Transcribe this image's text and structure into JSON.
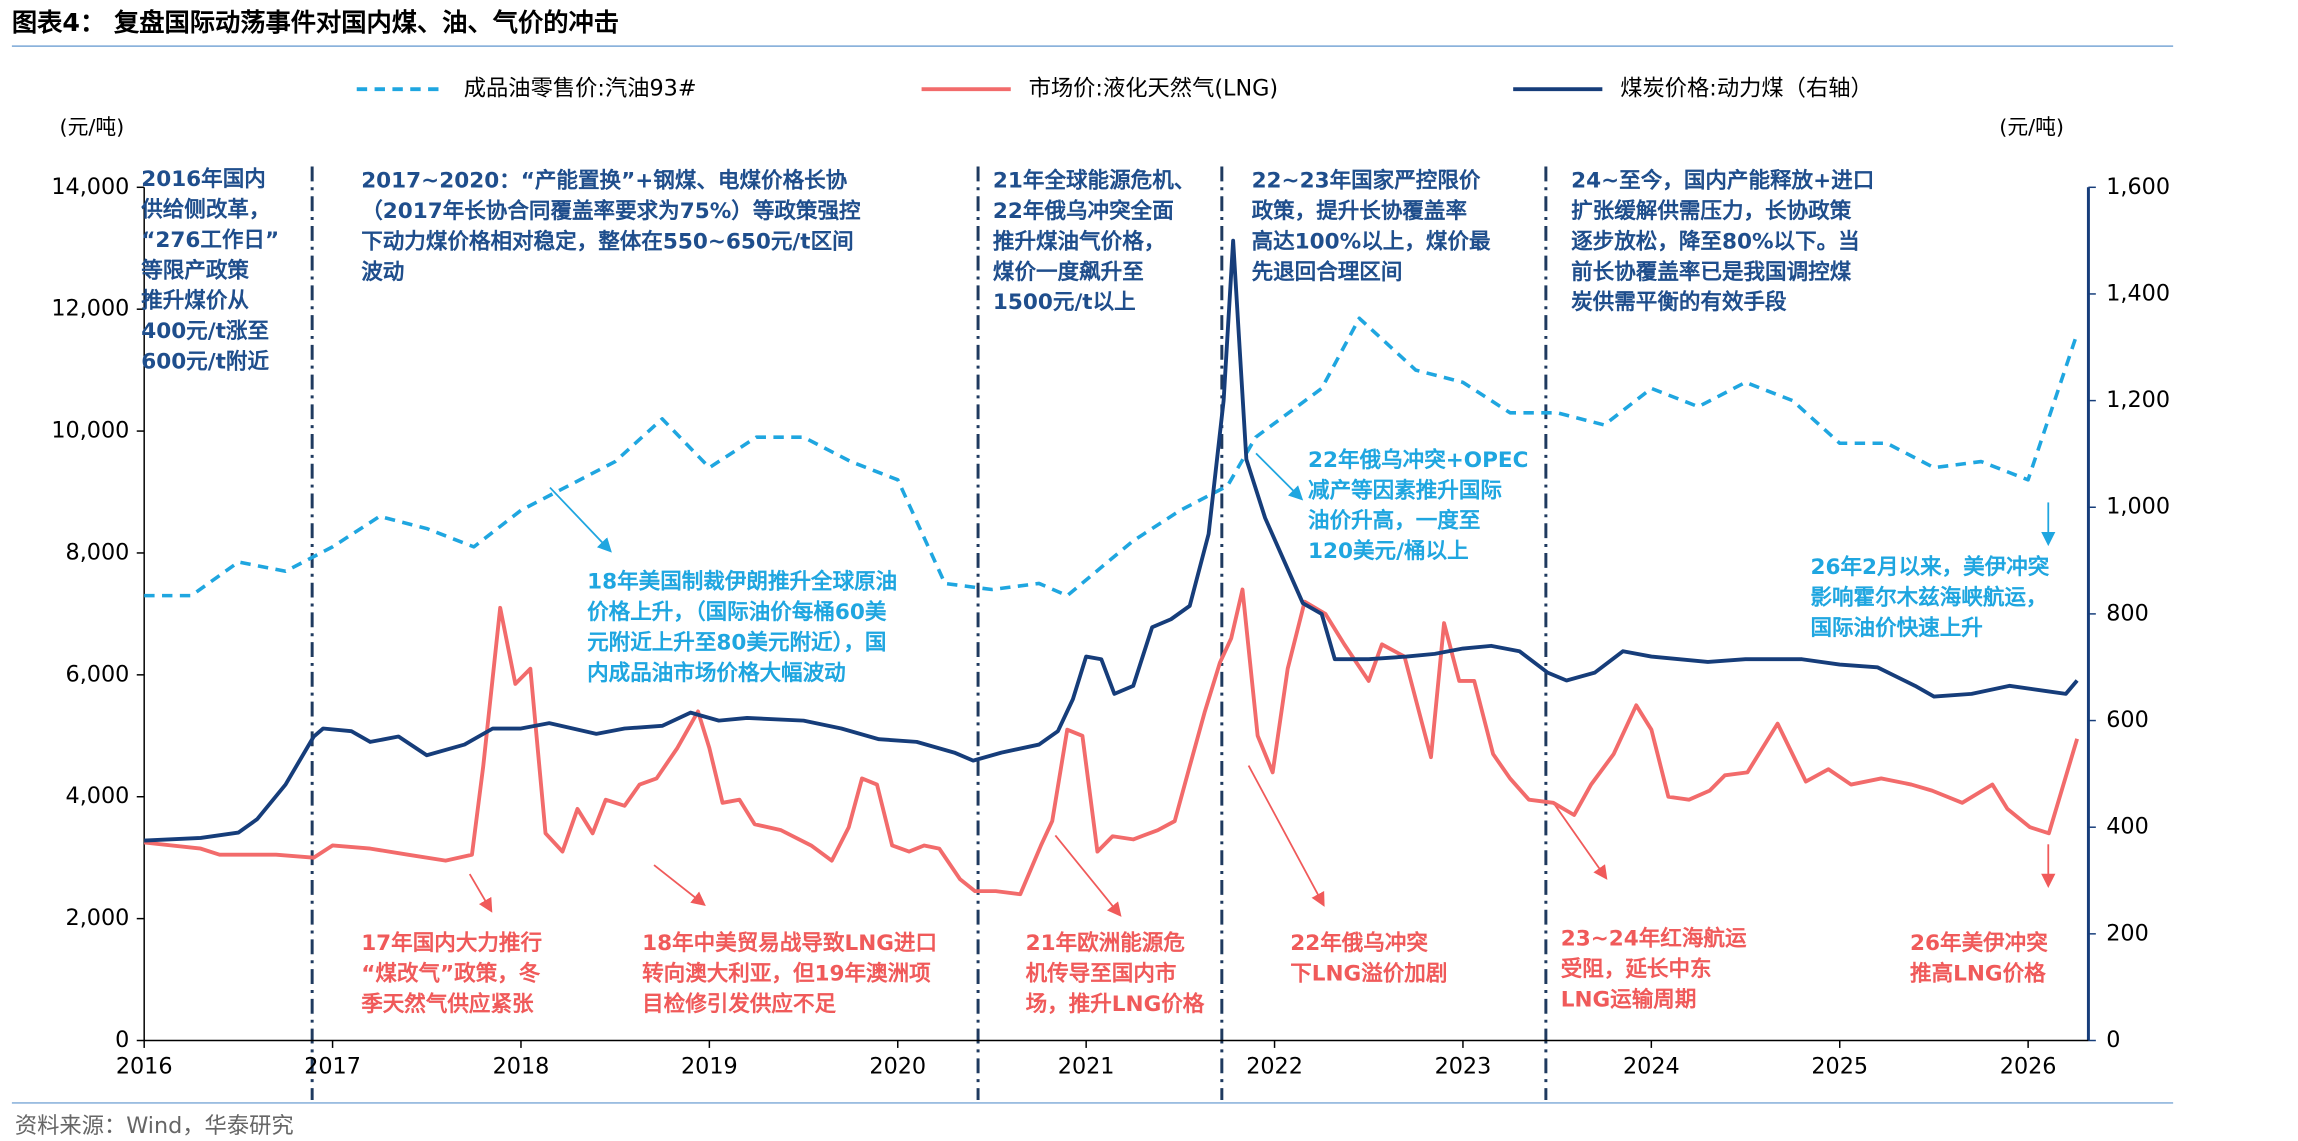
{
  "chart_data": {
    "type": "line",
    "title": "图表4：  复盘国际动荡事件对国内煤、油、气价的冲击",
    "source": "资料来源：Wind，华泰研究",
    "ylabel": "(元/吨)",
    "y2label": "(元/吨)",
    "xlim": [
      2016,
      2026.32
    ],
    "xticks": [
      2016,
      2017,
      2018,
      2019,
      2020,
      2021,
      2022,
      2023,
      2024,
      2025,
      2026
    ],
    "ylim": [
      0,
      14000
    ],
    "yticks": [
      0,
      {
        "value": 2000,
        "label": "2,000"
      },
      {
        "value": 4000,
        "label": "4,000"
      },
      {
        "value": 6000,
        "label": "6,000"
      },
      {
        "value": 8000,
        "label": "8,000"
      },
      {
        "value": 10000,
        "label": "10,000"
      },
      {
        "value": 12000,
        "label": "12,000"
      },
      {
        "value": 14000,
        "label": "14,000"
      }
    ],
    "y2lim": [
      0,
      1600
    ],
    "y2ticks": [
      0,
      200,
      400,
      600,
      800,
      {
        "value": 1000,
        "label": "1,000"
      },
      {
        "value": 1200,
        "label": "1,200"
      },
      {
        "value": 1400,
        "label": "1,400"
      },
      {
        "value": 1600,
        "label": "1,600"
      }
    ],
    "series": [
      {
        "name": "成品油零售价:汽油93#",
        "color": "#1fa6e0",
        "dash": true,
        "x": [
          2016,
          2016.25,
          2016.5,
          2016.75,
          2017,
          2017.25,
          2017.5,
          2017.75,
          2018,
          2018.25,
          2018.5,
          2018.75,
          2019,
          2019.25,
          2019.5,
          2019.75,
          2020,
          2020.25,
          2020.5,
          2020.75,
          2020.9,
          2021.25,
          2021.5,
          2021.75,
          2021.9,
          2022.25,
          2022.45,
          2022.75,
          2023,
          2023.25,
          2023.5,
          2023.75,
          2024,
          2024.25,
          2024.5,
          2024.75,
          2025,
          2025.25,
          2025.5,
          2025.75,
          2026,
          2026.26
        ],
        "values": [
          7300,
          7300,
          7850,
          7700,
          8100,
          8600,
          8400,
          8100,
          8700,
          9100,
          9500,
          10200,
          9400,
          9900,
          9900,
          9500,
          9200,
          7500,
          7400,
          7500,
          7300,
          8200,
          8700,
          9100,
          9900,
          10700,
          11850,
          11000,
          10800,
          10300,
          10300,
          10100,
          10700,
          10400,
          10800,
          10500,
          9800,
          9800,
          9400,
          9500,
          9200,
          11600
        ]
      },
      {
        "name": "市场价:液化天然气(LNG)",
        "color": "#f26b6b",
        "dash": false,
        "x": [
          2016,
          2016.3,
          2016.4,
          2016.7,
          2016.9,
          2017,
          2017.2,
          2017.4,
          2017.6,
          2017.74,
          2017.8,
          2017.89,
          2017.97,
          2018.05,
          2018.13,
          2018.22,
          2018.3,
          2018.38,
          2018.45,
          2018.55,
          2018.63,
          2018.72,
          2018.83,
          2018.94,
          2019,
          2019.07,
          2019.16,
          2019.24,
          2019.38,
          2019.54,
          2019.65,
          2019.74,
          2019.81,
          2019.89,
          2019.97,
          2020.06,
          2020.14,
          2020.22,
          2020.33,
          2020.41,
          2020.52,
          2020.65,
          2020.76,
          2020.82,
          2020.9,
          2020.98,
          2021.06,
          2021.14,
          2021.25,
          2021.38,
          2021.47,
          2021.55,
          2021.63,
          2021.71,
          2021.77,
          2021.83,
          2021.91,
          2021.99,
          2022.07,
          2022.16,
          2022.27,
          2022.37,
          2022.5,
          2022.57,
          2022.69,
          2022.83,
          2022.9,
          2022.98,
          2023.06,
          2023.16,
          2023.25,
          2023.35,
          2023.48,
          2023.59,
          2023.68,
          2023.8,
          2023.92,
          2024,
          2024.09,
          2024.2,
          2024.31,
          2024.39,
          2024.51,
          2024.67,
          2024.82,
          2024.94,
          2025.06,
          2025.22,
          2025.38,
          2025.49,
          2025.65,
          2025.81,
          2025.89,
          2026.01,
          2026.11,
          2026.26
        ],
        "values": [
          3250,
          3150,
          3050,
          3050,
          3000,
          3200,
          3150,
          3050,
          2950,
          3050,
          4500,
          7100,
          5850,
          6100,
          3400,
          3100,
          3800,
          3400,
          3950,
          3850,
          4200,
          4300,
          4800,
          5400,
          4800,
          3900,
          3950,
          3550,
          3450,
          3200,
          2950,
          3500,
          4300,
          4200,
          3200,
          3100,
          3200,
          3150,
          2650,
          2450,
          2450,
          2400,
          3200,
          3600,
          5100,
          5000,
          3100,
          3350,
          3300,
          3450,
          3600,
          4500,
          5400,
          6200,
          6600,
          7400,
          5000,
          4400,
          6100,
          7200,
          7000,
          6500,
          5900,
          6500,
          6300,
          4650,
          6850,
          5900,
          5900,
          4700,
          4300,
          3950,
          3900,
          3700,
          4200,
          4700,
          5500,
          5100,
          4000,
          3950,
          4100,
          4350,
          4400,
          5200,
          4250,
          4450,
          4200,
          4300,
          4200,
          4100,
          3900,
          4200,
          3800,
          3500,
          3400,
          4950
        ]
      },
      {
        "name": "煤炭价格:动力煤（右轴）",
        "color": "#163d7a",
        "dash": false,
        "axis": "y2",
        "x": [
          2016,
          2016.3,
          2016.5,
          2016.6,
          2016.75,
          2016.9,
          2016.95,
          2017.1,
          2017.2,
          2017.35,
          2017.5,
          2017.7,
          2017.85,
          2018,
          2018.15,
          2018.4,
          2018.55,
          2018.75,
          2018.9,
          2019.05,
          2019.2,
          2019.5,
          2019.7,
          2019.9,
          2020.1,
          2020.3,
          2020.4,
          2020.55,
          2020.75,
          2020.85,
          2020.93,
          2021,
          2021.08,
          2021.15,
          2021.25,
          2021.35,
          2021.45,
          2021.55,
          2021.65,
          2021.73,
          2021.78,
          2021.85,
          2021.95,
          2022.05,
          2022.15,
          2022.25,
          2022.32,
          2022.5,
          2022.7,
          2022.85,
          2023,
          2023.15,
          2023.3,
          2023.45,
          2023.55,
          2023.7,
          2023.85,
          2024,
          2024.3,
          2024.5,
          2024.8,
          2025,
          2025.2,
          2025.4,
          2025.5,
          2025.7,
          2025.9,
          2026.1,
          2026.2,
          2026.26
        ],
        "values": [
          375,
          380,
          390,
          415,
          480,
          570,
          585,
          580,
          560,
          570,
          535,
          555,
          585,
          585,
          595,
          575,
          585,
          590,
          615,
          600,
          605,
          600,
          585,
          565,
          560,
          540,
          525,
          540,
          555,
          580,
          640,
          720,
          715,
          650,
          665,
          775,
          790,
          815,
          950,
          1200,
          1500,
          1090,
          980,
          900,
          820,
          800,
          715,
          715,
          720,
          725,
          735,
          740,
          730,
          690,
          675,
          690,
          730,
          720,
          710,
          715,
          715,
          705,
          700,
          665,
          645,
          650,
          665,
          655,
          650,
          675
        ]
      }
    ],
    "annotations": [
      {
        "color": "#1f4e8c",
        "lines": [
          "2016年国内",
          "供给侧改革，",
          "“276工作日”",
          "等限产政策",
          "推升煤价从",
          "400元/t涨至",
          "600元/t附近"
        ]
      },
      {
        "color": "#1f4e8c",
        "lines": [
          "2017~2020：“产能置换”+钢煤、电煤价格长协",
          "（2017年长协合同覆盖率要求为75%）等政策强控",
          "下动力煤价格相对稳定，整体在550~650元/t区间",
          "波动"
        ]
      },
      {
        "color": "#1f4e8c",
        "lines": [
          "21年全球能源危机、",
          "22年俄乌冲突全面",
          "推升煤油气价格，",
          "煤价一度飙升至",
          "1500元/t以上"
        ]
      },
      {
        "color": "#1f4e8c",
        "lines": [
          "22~23年国家严控限价",
          "政策，提升长协覆盖率",
          "高达100%以上，煤价最",
          "先退回合理区间"
        ]
      },
      {
        "color": "#1f4e8c",
        "lines": [
          "24~至今，国内产能释放+进口",
          "扩张缓解供需压力，长协政策",
          "逐步放松，降至80%以下。当",
          "前长协覆盖率已是我国调控煤",
          "炭供需平衡的有效手段"
        ]
      },
      {
        "color": "#1fa6e0",
        "lines": [
          "18年美国制裁伊朗推升全球原油",
          "价格上升，（国际油价每桶60美",
          "元附近上升至80美元附近），国",
          "内成品油市场价格大幅波动"
        ]
      },
      {
        "color": "#1fa6e0",
        "lines": [
          "22年俄乌冲突+OPEC",
          "减产等因素推升国际",
          "油价升高，一度至",
          "120美元/桶以上"
        ]
      },
      {
        "color": "#1fa6e0",
        "lines": [
          "26年2月以来，美伊冲突",
          "影响霍尔木兹海峡航运，",
          "国际油价快速上升"
        ]
      },
      {
        "color": "#f05a5a",
        "lines": [
          "17年国内大力推行",
          "“煤改气”政策，冬",
          "季天然气供应紧张"
        ]
      },
      {
        "color": "#f05a5a",
        "lines": [
          "18年中美贸易战导致LNG进口",
          "转向澳大利亚，但19年澳洲项",
          "目检修引发供应不足"
        ]
      },
      {
        "color": "#f05a5a",
        "lines": [
          "21年欧洲能源危",
          "机传导至国内市",
          "场，推升LNG价格"
        ]
      },
      {
        "color": "#f05a5a",
        "lines": [
          "22年俄乌冲突",
          "下LNG溢价加剧"
        ]
      },
      {
        "color": "#f05a5a",
        "lines": [
          "23~24年红海航运",
          "受阻，延长中东",
          "LNG运输周期"
        ]
      },
      {
        "color": "#f05a5a",
        "lines": [
          "26年美伊冲突",
          "推高LNG价格"
        ]
      }
    ]
  }
}
